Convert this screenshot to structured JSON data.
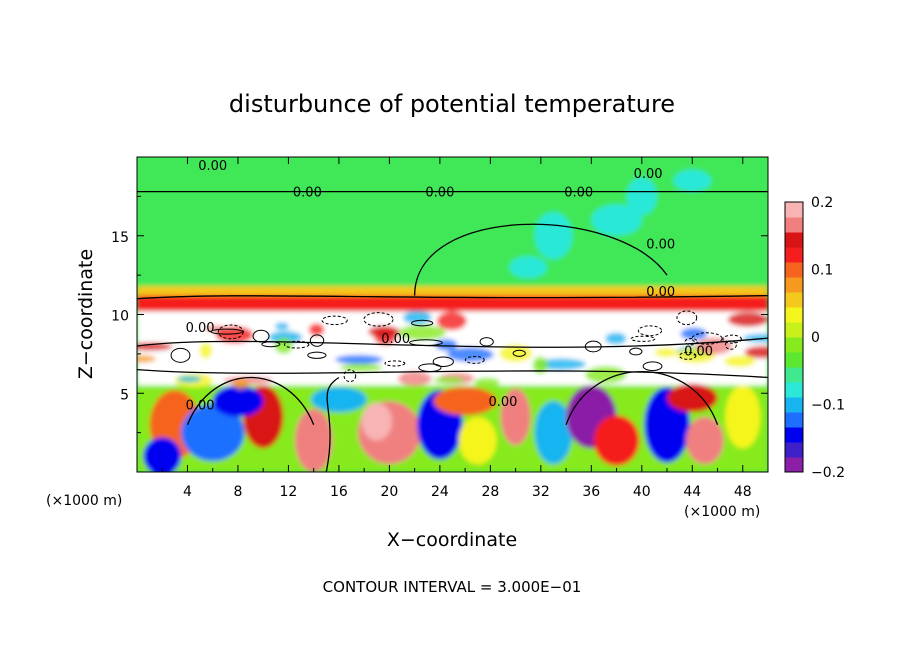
{
  "chart_data": {
    "type": "heatmap",
    "title": "disturbunce of potential temperature",
    "xlabel": "X−coordinate",
    "ylabel": "Z−coordinate",
    "x_unit_label": "(×1000 m)",
    "z_unit_label": "(×1000 m)",
    "xlim": [
      0,
      50
    ],
    "ylim": [
      0,
      20
    ],
    "x_ticks": [
      "4",
      "8",
      "12",
      "16",
      "20",
      "24",
      "28",
      "32",
      "36",
      "40",
      "44",
      "48"
    ],
    "x_tick_values": [
      4,
      8,
      12,
      16,
      20,
      24,
      28,
      32,
      36,
      40,
      44,
      48
    ],
    "y_ticks": [
      "5",
      "10",
      "15"
    ],
    "y_tick_values": [
      5,
      10,
      15
    ],
    "footer": "CONTOUR INTERVAL = 3.000E−01",
    "contour_labels": [
      "0.00",
      "0.00",
      "0.00",
      "0.00",
      "0.00",
      "0.00",
      "0.00",
      "0.00",
      "0.00",
      "0.00",
      "0.00",
      "0.00"
    ],
    "colorbar": {
      "range": [
        -0.2,
        0.2
      ],
      "tick_labels": [
        "0.2",
        "0.1",
        "0",
        "−0.1",
        "−0.2"
      ],
      "tick_values": [
        0.2,
        0.1,
        0,
        -0.1,
        -0.2
      ],
      "colors": [
        "#8B1FA8",
        "#3F1FC8",
        "#0000F0",
        "#1E6FFF",
        "#18B4F0",
        "#2CE8D8",
        "#40E890",
        "#5CE830",
        "#86EA1E",
        "#C8F01A",
        "#F5F51E",
        "#F5C81E",
        "#F59A1E",
        "#F5641E",
        "#F51E1E",
        "#D81414",
        "#F08080",
        "#F8B4B4"
      ]
    }
  }
}
